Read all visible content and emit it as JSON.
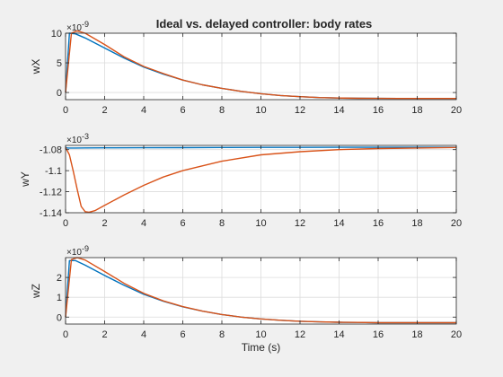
{
  "title": "Ideal vs. delayed controller: body rates",
  "colors": {
    "ideal": "#0072BD",
    "delayed": "#D95319",
    "grid": "#dcdcdc",
    "axis": "#262626",
    "plot_bg": "#ffffff",
    "figure_bg": "#f0f0f0"
  },
  "chart_data": [
    {
      "type": "line",
      "ylabel": "wX",
      "xlabel": "",
      "exponent_label": "×10",
      "exponent_power": "-9",
      "xlim": [
        0,
        20
      ],
      "ylim": [
        -1.2,
        10
      ],
      "xticks": [
        "0",
        "2",
        "4",
        "6",
        "8",
        "10",
        "12",
        "14",
        "16",
        "18",
        "20"
      ],
      "yticks": [
        {
          "value": 0,
          "label": "0"
        },
        {
          "value": 5,
          "label": "5"
        },
        {
          "value": 10,
          "label": "10"
        }
      ],
      "grid": true,
      "series": [
        {
          "color": "ideal",
          "x": [
            0,
            0.2,
            0.5,
            1,
            2,
            3,
            4,
            5,
            6,
            7,
            8,
            9,
            10,
            11,
            12,
            13,
            14,
            15,
            16,
            17,
            18,
            19,
            20
          ],
          "y": [
            0,
            10.0,
            9.9,
            9.2,
            7.5,
            5.8,
            4.3,
            3.1,
            2.1,
            1.3,
            0.7,
            0.2,
            -0.2,
            -0.5,
            -0.7,
            -0.85,
            -0.93,
            -0.97,
            -0.99,
            -1.0,
            -1.0,
            -1.0,
            -1.0
          ]
        },
        {
          "color": "delayed",
          "x": [
            0,
            0.3,
            0.6,
            1,
            2,
            3,
            4,
            5,
            6,
            7,
            8,
            9,
            10,
            11,
            12,
            13,
            14,
            15,
            16,
            17,
            18,
            19,
            20
          ],
          "y": [
            0,
            10.0,
            10.4,
            10.0,
            8.1,
            6.0,
            4.4,
            3.2,
            2.1,
            1.3,
            0.7,
            0.2,
            -0.2,
            -0.5,
            -0.7,
            -0.85,
            -0.93,
            -0.97,
            -0.99,
            -1.0,
            -1.0,
            -1.0,
            -1.0
          ]
        }
      ]
    },
    {
      "type": "line",
      "ylabel": "wY",
      "xlabel": "",
      "exponent_label": "×10",
      "exponent_power": "-3",
      "xlim": [
        0,
        20
      ],
      "ylim": [
        -1.14,
        -1.076
      ],
      "xticks": [
        "0",
        "2",
        "4",
        "6",
        "8",
        "10",
        "12",
        "14",
        "16",
        "18",
        "20"
      ],
      "yticks": [
        {
          "value": -1.08,
          "label": "-1.08"
        },
        {
          "value": -1.1,
          "label": "-1.1"
        },
        {
          "value": -1.12,
          "label": "-1.12"
        },
        {
          "value": -1.14,
          "label": "-1.14"
        }
      ],
      "grid": true,
      "series": [
        {
          "color": "ideal",
          "x": [
            0,
            0.1,
            0.5,
            1,
            2,
            4,
            6,
            8,
            10,
            12,
            14,
            16,
            18,
            20
          ],
          "y": [
            -1.078,
            -1.0785,
            -1.0785,
            -1.0784,
            -1.0783,
            -1.0782,
            -1.0781,
            -1.078,
            -1.0779,
            -1.0779,
            -1.0778,
            -1.0778,
            -1.0778,
            -1.0778
          ]
        },
        {
          "color": "delayed",
          "x": [
            0,
            0.2,
            0.4,
            0.6,
            0.8,
            1.0,
            1.2,
            1.5,
            2,
            3,
            4,
            5,
            6,
            8,
            10,
            12,
            14,
            16,
            18,
            20
          ],
          "y": [
            -1.078,
            -1.085,
            -1.101,
            -1.118,
            -1.134,
            -1.139,
            -1.1395,
            -1.138,
            -1.133,
            -1.123,
            -1.114,
            -1.106,
            -1.1,
            -1.091,
            -1.085,
            -1.082,
            -1.08,
            -1.079,
            -1.0785,
            -1.078
          ]
        }
      ]
    },
    {
      "type": "line",
      "ylabel": "wZ",
      "xlabel": "Time (s)",
      "exponent_label": "×10",
      "exponent_power": "-9",
      "xlim": [
        0,
        20
      ],
      "ylim": [
        -0.35,
        3.0
      ],
      "xticks": [
        "0",
        "2",
        "4",
        "6",
        "8",
        "10",
        "12",
        "14",
        "16",
        "18",
        "20"
      ],
      "yticks": [
        {
          "value": 0,
          "label": "0"
        },
        {
          "value": 1,
          "label": "1"
        },
        {
          "value": 2,
          "label": "2"
        }
      ],
      "grid": true,
      "series": [
        {
          "color": "ideal",
          "x": [
            0,
            0.2,
            0.5,
            1,
            2,
            3,
            4,
            5,
            6,
            7,
            8,
            9,
            10,
            11,
            12,
            13,
            14,
            15,
            16,
            17,
            18,
            19,
            20
          ],
          "y": [
            0,
            2.85,
            2.85,
            2.62,
            2.1,
            1.6,
            1.15,
            0.8,
            0.52,
            0.3,
            0.13,
            0.0,
            -0.09,
            -0.16,
            -0.21,
            -0.24,
            -0.26,
            -0.27,
            -0.28,
            -0.28,
            -0.28,
            -0.28,
            -0.28
          ]
        },
        {
          "color": "delayed",
          "x": [
            0,
            0.3,
            0.6,
            1,
            2,
            3,
            4,
            5,
            6,
            7,
            8,
            9,
            10,
            11,
            12,
            13,
            14,
            15,
            16,
            17,
            18,
            19,
            20
          ],
          "y": [
            0,
            2.9,
            3.0,
            2.88,
            2.3,
            1.7,
            1.2,
            0.82,
            0.53,
            0.3,
            0.13,
            0.0,
            -0.09,
            -0.16,
            -0.21,
            -0.24,
            -0.26,
            -0.27,
            -0.28,
            -0.28,
            -0.28,
            -0.28,
            -0.28
          ]
        }
      ]
    }
  ]
}
